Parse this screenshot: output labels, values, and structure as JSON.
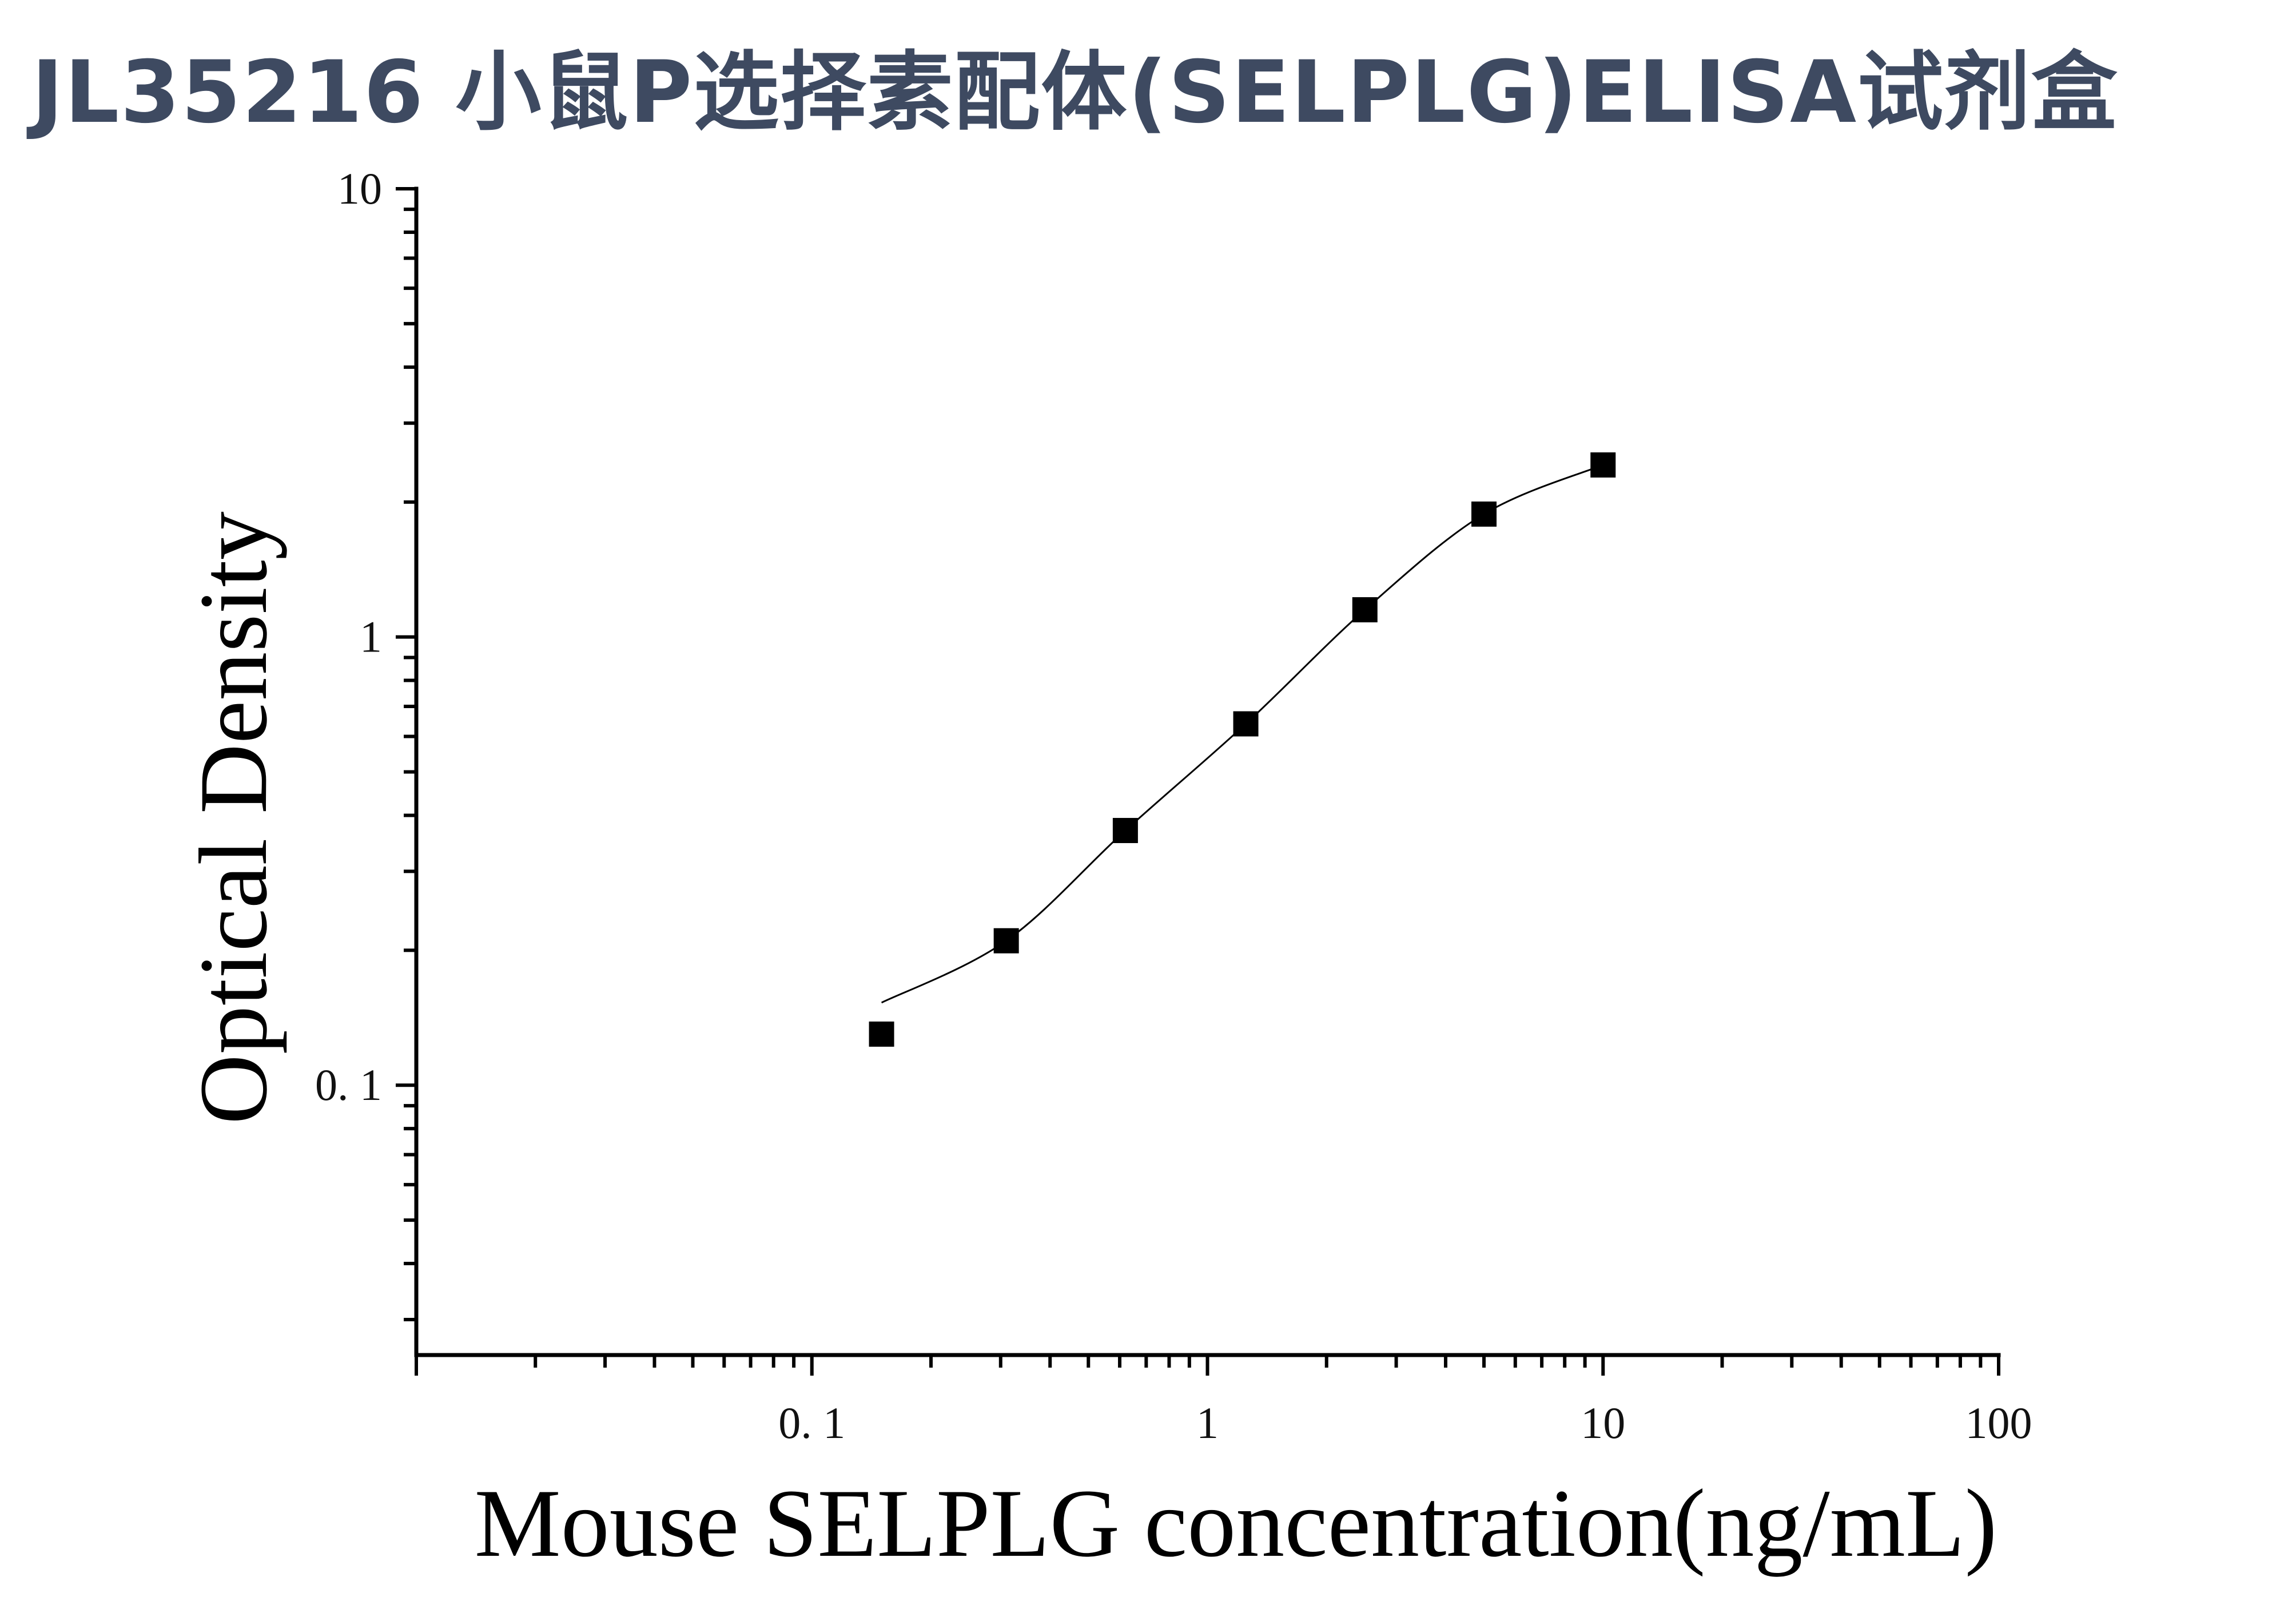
{
  "chart_data": {
    "type": "scatter",
    "title": "JL35216 小鼠P选择素配体(SELPLG)ELISA试剂盒",
    "xlabel": "Mouse SELPLG concentration(ng/mL)",
    "ylabel": "Optical Density",
    "x_scale": "log",
    "y_scale": "log",
    "xlim": [
      0.01,
      100
    ],
    "ylim": [
      0.025,
      10
    ],
    "x_tick_labels": [
      "0. 1",
      "1",
      "10",
      "100"
    ],
    "x_tick_values": [
      0.1,
      1,
      10,
      100
    ],
    "y_tick_labels": [
      "0. 1",
      "1",
      "10"
    ],
    "y_tick_values": [
      0.1,
      1,
      10
    ],
    "grid": false,
    "series": [
      {
        "x": [
          0.15,
          0.31,
          0.62,
          1.25,
          2.5,
          5,
          10
        ],
        "y": [
          0.13,
          0.21,
          0.37,
          0.64,
          1.15,
          1.88,
          2.42
        ],
        "marker": "square",
        "fit_curve": true
      }
    ],
    "colors": {
      "marker": "#000000",
      "axis": "#000000",
      "title": "#3e4a61"
    }
  }
}
